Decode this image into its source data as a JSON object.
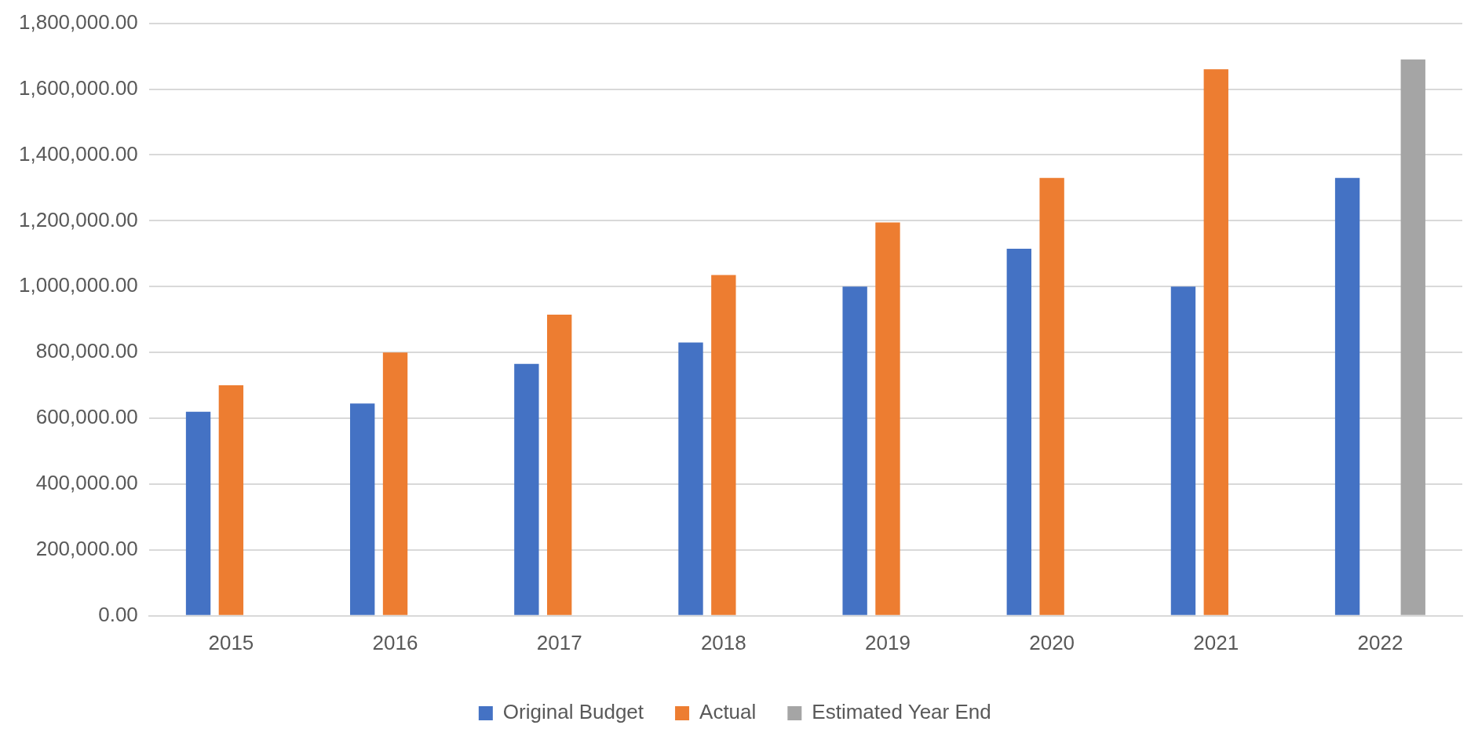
{
  "chart_data": {
    "type": "bar",
    "categories": [
      "2015",
      "2016",
      "2017",
      "2018",
      "2019",
      "2020",
      "2021",
      "2022"
    ],
    "series": [
      {
        "name": "Original Budget",
        "color": "#4472c4",
        "values": [
          620000,
          645000,
          765000,
          830000,
          1000000,
          1115000,
          1000000,
          1330000
        ]
      },
      {
        "name": "Actual",
        "color": "#ed7d31",
        "values": [
          700000,
          800000,
          915000,
          1035000,
          1195000,
          1330000,
          1660000,
          null
        ]
      },
      {
        "name": "Estimated Year End",
        "color": "#a5a5a5",
        "values": [
          null,
          null,
          null,
          null,
          null,
          null,
          null,
          1690000
        ]
      }
    ],
    "ylim": [
      0,
      1800000
    ],
    "yticks": [
      {
        "value": 0,
        "label": "0.00"
      },
      {
        "value": 200000,
        "label": "200,000.00"
      },
      {
        "value": 400000,
        "label": "400,000.00"
      },
      {
        "value": 600000,
        "label": "600,000.00"
      },
      {
        "value": 800000,
        "label": "800,000.00"
      },
      {
        "value": 1000000,
        "label": "1,000,000.00"
      },
      {
        "value": 1200000,
        "label": "1,200,000.00"
      },
      {
        "value": 1400000,
        "label": "1,400,000.00"
      },
      {
        "value": 1600000,
        "label": "1,600,000.00"
      },
      {
        "value": 1800000,
        "label": "1,800,000.00"
      }
    ],
    "grid": "y",
    "legend": "bottom"
  }
}
